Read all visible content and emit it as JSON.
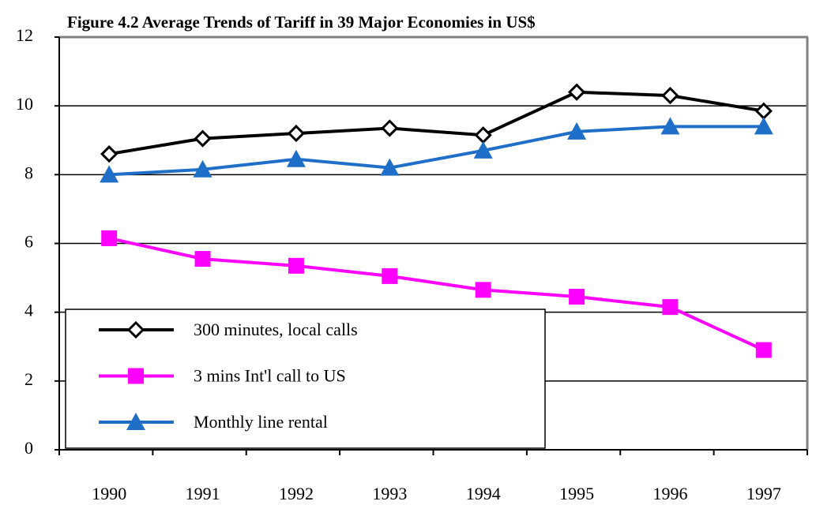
{
  "chart_data": {
    "type": "line",
    "title": "Figure 4.2 Average Trends of Tariff in 39 Major Economies in US$",
    "categories": [
      "1990",
      "1991",
      "1992",
      "1993",
      "1994",
      "1995",
      "1996",
      "1997"
    ],
    "series": [
      {
        "name": "300 minutes, local calls",
        "color": "#000000",
        "marker": "diamond",
        "values": [
          8.6,
          9.05,
          9.2,
          9.35,
          9.15,
          10.4,
          10.3,
          9.85
        ]
      },
      {
        "name": "3 mins Int'l call to US",
        "color": "#ff00ff",
        "marker": "square",
        "values": [
          6.15,
          5.55,
          5.35,
          5.05,
          4.65,
          4.45,
          4.15,
          2.9
        ]
      },
      {
        "name": "Monthly line rental",
        "color": "#1f6fc8",
        "marker": "triangle",
        "values": [
          8.0,
          8.15,
          8.45,
          8.2,
          8.7,
          9.25,
          9.4,
          9.4
        ]
      }
    ],
    "ylim": [
      0,
      12
    ],
    "yticks": [
      0,
      2,
      4,
      6,
      8,
      10,
      12
    ],
    "grid": true,
    "legend": "bottom-left"
  }
}
